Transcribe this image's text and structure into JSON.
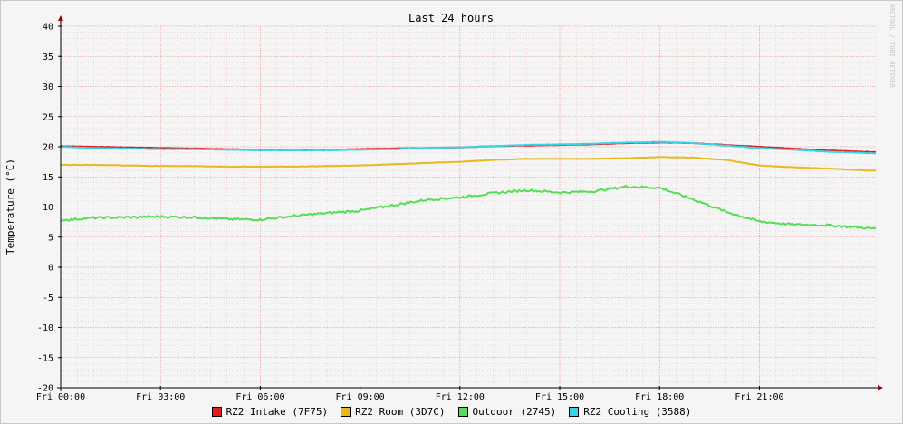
{
  "chart_data": {
    "type": "line",
    "title": "Last 24 hours",
    "ylabel": "Temperature (°C)",
    "xlabel": "",
    "watermark": "RRDTOOL / TOBI OETIKER",
    "ylim": [
      -20,
      40
    ],
    "yticks": [
      -20,
      -15,
      -10,
      -5,
      0,
      5,
      10,
      15,
      20,
      25,
      30,
      35,
      40
    ],
    "xlim": [
      0,
      24.5
    ],
    "xticks": [
      {
        "t": 0,
        "label": "Fri 00:00"
      },
      {
        "t": 3,
        "label": "Fri 03:00"
      },
      {
        "t": 6,
        "label": "Fri 06:00"
      },
      {
        "t": 9,
        "label": "Fri 09:00"
      },
      {
        "t": 12,
        "label": "Fri 12:00"
      },
      {
        "t": 15,
        "label": "Fri 15:00"
      },
      {
        "t": 18,
        "label": "Fri 18:00"
      },
      {
        "t": 21,
        "label": "Fri 21:00"
      }
    ],
    "grid": true,
    "legend_position": "bottom",
    "x": [
      0,
      1,
      2,
      3,
      4,
      5,
      6,
      7,
      8,
      9,
      10,
      11,
      12,
      13,
      14,
      15,
      16,
      17,
      18,
      19,
      20,
      21,
      22,
      23,
      24.5
    ],
    "series": [
      {
        "name": "RZ2 Intake (7F75)",
        "color": "#e41a1c",
        "values": [
          20.1,
          20.0,
          19.9,
          19.8,
          19.7,
          19.6,
          19.5,
          19.5,
          19.5,
          19.6,
          19.7,
          19.8,
          19.9,
          20.1,
          20.2,
          20.3,
          20.4,
          20.6,
          20.7,
          20.6,
          20.3,
          20.0,
          19.7,
          19.4,
          19.1
        ]
      },
      {
        "name": "RZ2 Room (3D7C)",
        "color": "#e8b81e",
        "values": [
          17.0,
          17.0,
          16.9,
          16.8,
          16.8,
          16.7,
          16.7,
          16.7,
          16.8,
          16.9,
          17.1,
          17.3,
          17.5,
          17.8,
          18.0,
          18.0,
          18.0,
          18.1,
          18.3,
          18.2,
          17.8,
          16.9,
          16.6,
          16.4,
          16.0
        ]
      },
      {
        "name": "Outdoor (2745)",
        "color": "#55dd55",
        "values": [
          7.8,
          8.2,
          8.3,
          8.4,
          8.3,
          8.0,
          7.9,
          8.5,
          9.0,
          9.4,
          10.3,
          11.2,
          11.6,
          12.3,
          12.8,
          12.4,
          12.6,
          13.4,
          13.2,
          11.3,
          9.2,
          7.6,
          7.1,
          7.0,
          6.4
        ]
      },
      {
        "name": "RZ2 Cooling (3588)",
        "color": "#3ad4e8",
        "values": [
          20.0,
          19.8,
          19.7,
          19.6,
          19.6,
          19.5,
          19.4,
          19.4,
          19.4,
          19.5,
          19.6,
          19.8,
          19.9,
          20.1,
          20.3,
          20.4,
          20.5,
          20.7,
          20.8,
          20.6,
          20.2,
          19.8,
          19.5,
          19.2,
          18.9
        ]
      }
    ]
  }
}
